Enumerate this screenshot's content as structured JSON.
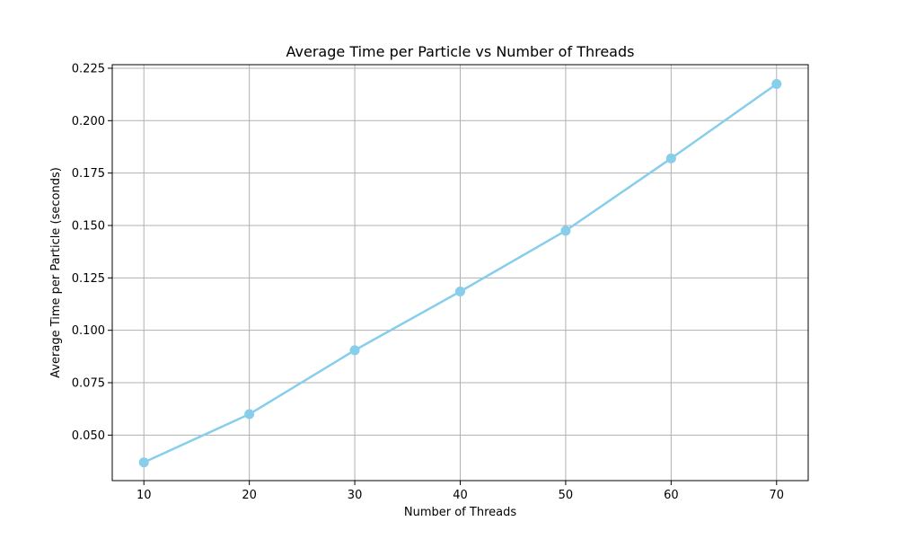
{
  "chart_data": {
    "type": "line",
    "title": "Average Time per Particle vs Number of Threads",
    "xlabel": "Number of Threads",
    "ylabel": "Average Time per Particle (seconds)",
    "x": [
      10,
      20,
      30,
      40,
      50,
      60,
      70
    ],
    "series": [
      {
        "values": [
          0.037,
          0.06,
          0.0905,
          0.1185,
          0.1475,
          0.182,
          0.2175
        ],
        "color": "#87CEEB",
        "marker": "circle"
      }
    ],
    "xlim": [
      7,
      73
    ],
    "ylim": [
      0.0283,
      0.2267
    ],
    "xticks": [
      10,
      20,
      30,
      40,
      50,
      60,
      70
    ],
    "yticks": [
      0.05,
      0.075,
      0.1,
      0.125,
      0.15,
      0.175,
      0.2,
      0.225
    ],
    "xtick_labels": [
      "10",
      "20",
      "30",
      "40",
      "50",
      "60",
      "70"
    ],
    "ytick_labels": [
      "0.050",
      "0.075",
      "0.100",
      "0.125",
      "0.150",
      "0.175",
      "0.200",
      "0.225"
    ],
    "grid": true,
    "grid_color": "#b0b0b0",
    "axes_color": "#000000"
  }
}
